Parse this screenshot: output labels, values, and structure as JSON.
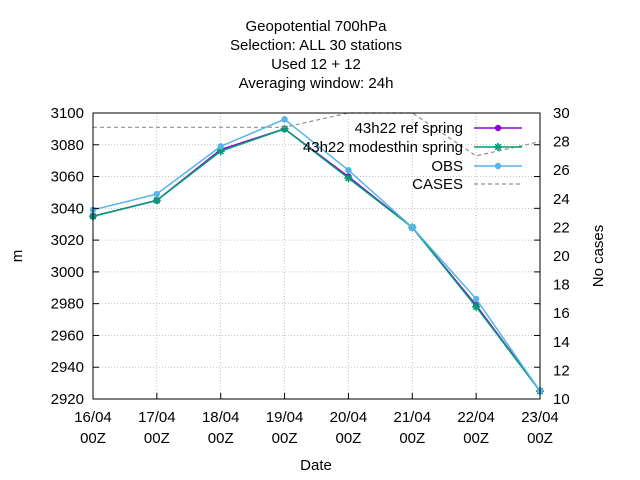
{
  "chart_data": {
    "type": "line",
    "title_lines": [
      "Geopotential 700hPa",
      "Selection: ALL     30 stations",
      "Used  12  + 12",
      "Averaging window: 24h"
    ],
    "xlabel": "Date",
    "ylabel": "m",
    "y2label": "No cases",
    "categories": [
      "16/04 00Z",
      "17/04 00Z",
      "18/04 00Z",
      "19/04 00Z",
      "20/04 00Z",
      "21/04 00Z",
      "22/04 00Z",
      "23/04 00Z"
    ],
    "x_ticks": [
      {
        "line1": "16/04",
        "line2": "00Z"
      },
      {
        "line1": "17/04",
        "line2": "00Z"
      },
      {
        "line1": "18/04",
        "line2": "00Z"
      },
      {
        "line1": "19/04",
        "line2": "00Z"
      },
      {
        "line1": "20/04",
        "line2": "00Z"
      },
      {
        "line1": "21/04",
        "line2": "00Z"
      },
      {
        "line1": "22/04",
        "line2": "00Z"
      },
      {
        "line1": "23/04",
        "line2": "00Z"
      }
    ],
    "ylim": [
      2920,
      3100
    ],
    "y_ticks": [
      2920,
      2940,
      2960,
      2980,
      3000,
      3020,
      3040,
      3060,
      3080,
      3100
    ],
    "y2lim": [
      10,
      30
    ],
    "y2_ticks": [
      10,
      12,
      14,
      16,
      18,
      20,
      22,
      24,
      26,
      28,
      30
    ],
    "grid": true,
    "legend_position": "top-right",
    "series": [
      {
        "name": "43h22 ref spring",
        "legend_label": "43h22 ref spring",
        "axis": "y",
        "color": "#9400d3",
        "marker": "filled-circle",
        "dashed": false,
        "values": [
          3035,
          3045,
          3077,
          3090,
          3060,
          3028,
          2979,
          2925
        ]
      },
      {
        "name": "43h22 modesthin spring",
        "legend_label": "43h22 modesthin spring",
        "axis": "y",
        "color": "#009e73",
        "marker": "star",
        "dashed": false,
        "values": [
          3035,
          3045,
          3076,
          3090,
          3059,
          3028,
          2978,
          2925
        ]
      },
      {
        "name": "OBS",
        "legend_label": "OBS",
        "axis": "y",
        "color": "#56b4e9",
        "marker": "filled-circle",
        "dashed": false,
        "values": [
          3039,
          3049,
          3079,
          3096,
          3064,
          3028,
          2983,
          2925
        ]
      },
      {
        "name": "CASES",
        "legend_label": "CASES",
        "axis": "y2",
        "color": "#909090",
        "marker": "none",
        "dashed": true,
        "values": [
          29,
          29,
          29,
          29,
          30,
          30,
          27,
          28
        ]
      }
    ]
  }
}
